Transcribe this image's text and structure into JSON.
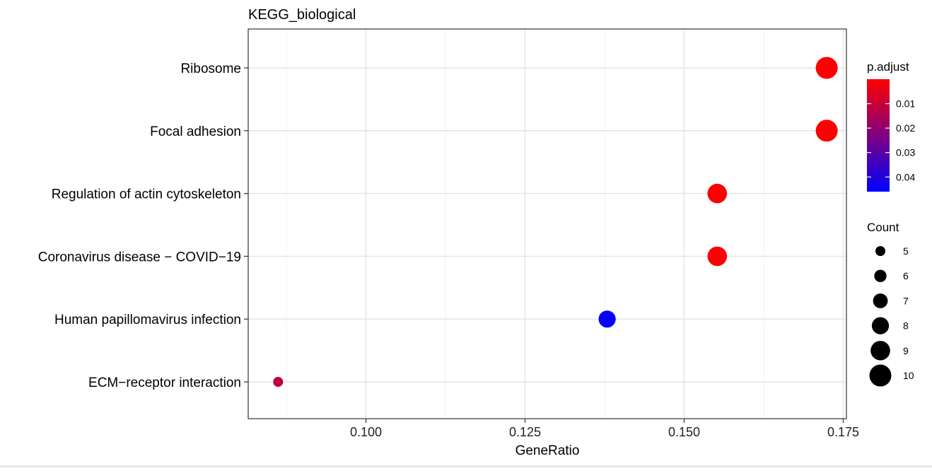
{
  "chart_data": {
    "type": "scatter",
    "title": "KEGG_biological",
    "xlabel": "GeneRatio",
    "ylabel": "",
    "xlim": [
      0.0815,
      0.1755
    ],
    "x_ticks": [
      0.1,
      0.125,
      0.15,
      0.175
    ],
    "x_tick_labels": [
      "0.100",
      "0.125",
      "0.150",
      "0.175"
    ],
    "categories": [
      "Ribosome",
      "Focal adhesion",
      "Regulation of actin cytoskeleton",
      "Coronavirus disease − COVID−19",
      "Human papillomavirus infection",
      "ECM−receptor interaction"
    ],
    "points": [
      {
        "term": "Ribosome",
        "gene_ratio": 0.1724,
        "count": 10,
        "p_adjust": 0.0001
      },
      {
        "term": "Focal adhesion",
        "gene_ratio": 0.1724,
        "count": 10,
        "p_adjust": 0.0002
      },
      {
        "term": "Regulation of actin cytoskeleton",
        "gene_ratio": 0.1552,
        "count": 9,
        "p_adjust": 0.0003
      },
      {
        "term": "Coronavirus disease − COVID−19",
        "gene_ratio": 0.1552,
        "count": 9,
        "p_adjust": 0.0004
      },
      {
        "term": "Human papillomavirus infection",
        "gene_ratio": 0.1379,
        "count": 8,
        "p_adjust": 0.045
      },
      {
        "term": "ECM−receptor interaction",
        "gene_ratio": 0.0862,
        "count": 5,
        "p_adjust": 0.012
      }
    ],
    "grid": true,
    "color_scale": {
      "title": "p.adjust",
      "low_color": "#ff0000",
      "high_color": "#0000ff",
      "min": 0.0,
      "max": 0.046,
      "ticks": [
        0.01,
        0.02,
        0.03,
        0.04
      ],
      "tick_labels": [
        "0.01",
        "0.02",
        "0.03",
        "0.04"
      ]
    },
    "size_legend": {
      "title": "Count",
      "values": [
        5,
        6,
        7,
        8,
        9,
        10
      ],
      "labels": [
        "5",
        "6",
        "7",
        "8",
        "9",
        "10"
      ],
      "color": "#000000"
    },
    "legend_position": "right"
  }
}
